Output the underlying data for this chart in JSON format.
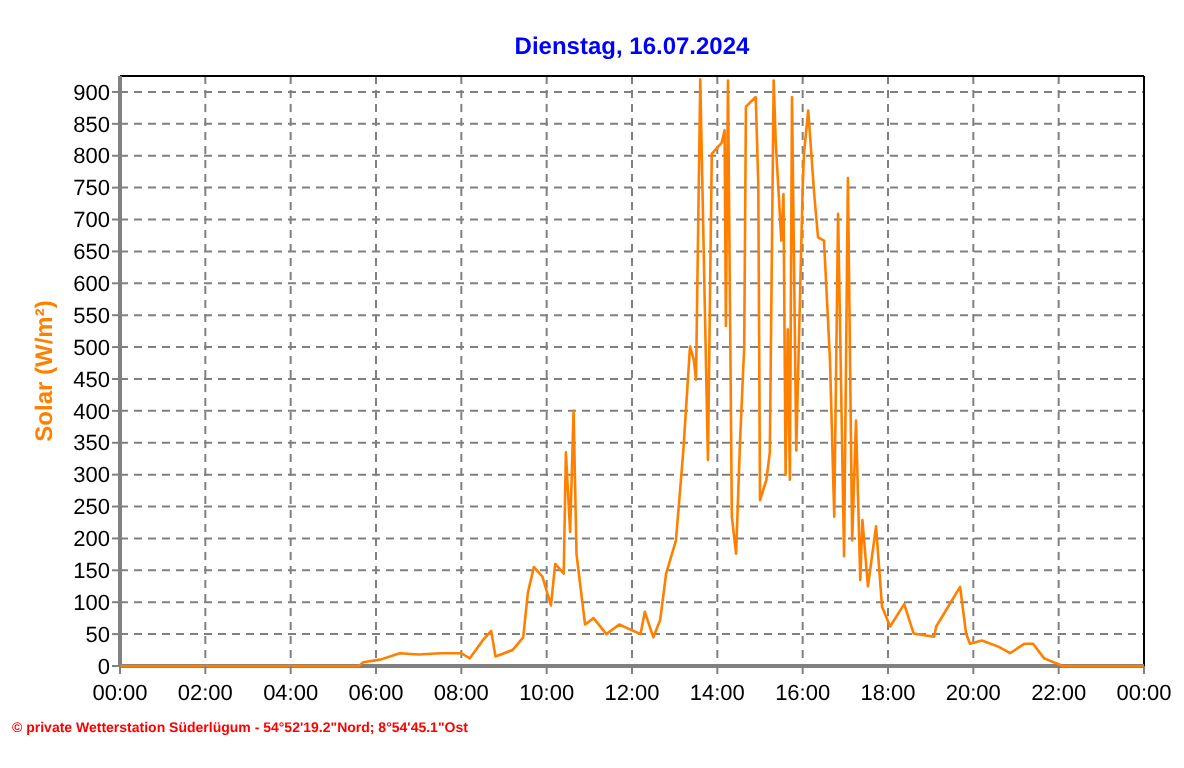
{
  "chart_data": {
    "type": "line",
    "title": "Dienstag, 16.07.2024",
    "ylabel": "Solar (W/m²)",
    "annotations": [
      "© private Wetterstation Süderlügum - 54°52'19.2\"Nord; 8°54'45.1\"Ost"
    ],
    "xlim": [
      0,
      24
    ],
    "ylim": [
      0,
      925
    ],
    "xticks": [
      {
        "value": 0,
        "label": "00:00"
      },
      {
        "value": 2,
        "label": "02:00"
      },
      {
        "value": 4,
        "label": "04:00"
      },
      {
        "value": 6,
        "label": "06:00"
      },
      {
        "value": 8,
        "label": "08:00"
      },
      {
        "value": 10,
        "label": "10:00"
      },
      {
        "value": 12,
        "label": "12:00"
      },
      {
        "value": 14,
        "label": "14:00"
      },
      {
        "value": 16,
        "label": "16:00"
      },
      {
        "value": 18,
        "label": "18:00"
      },
      {
        "value": 20,
        "label": "20:00"
      },
      {
        "value": 22,
        "label": "22:00"
      },
      {
        "value": 24,
        "label": "00:00"
      }
    ],
    "yticks": [
      0,
      50,
      100,
      150,
      200,
      250,
      300,
      350,
      400,
      450,
      500,
      550,
      600,
      650,
      700,
      750,
      800,
      850,
      900
    ],
    "grid": true,
    "series": [
      {
        "color": "#ff8000",
        "x": [
          0,
          5.6,
          5.7,
          6.1,
          6.56,
          7.0,
          7.5,
          8.0,
          8.2,
          8.5,
          8.7,
          8.8,
          9.2,
          9.45,
          9.56,
          9.7,
          9.9,
          10.1,
          10.2,
          10.4,
          10.45,
          10.55,
          10.63,
          10.7,
          10.9,
          11.1,
          11.4,
          11.7,
          12.2,
          12.3,
          12.5,
          12.66,
          12.8,
          13.03,
          13.2,
          13.36,
          13.45,
          13.5,
          13.6,
          13.7,
          13.78,
          13.87,
          14.1,
          14.17,
          14.2,
          14.25,
          14.34,
          14.44,
          14.53,
          14.63,
          14.67,
          14.9,
          14.96,
          15.0,
          15.15,
          15.23,
          15.32,
          15.37,
          15.5,
          15.55,
          15.6,
          15.65,
          15.7,
          15.75,
          15.85,
          16.0,
          16.03,
          16.13,
          16.27,
          16.36,
          16.5,
          16.64,
          16.74,
          16.83,
          16.97,
          17.06,
          17.16,
          17.25,
          17.35,
          17.4,
          17.53,
          17.72,
          17.86,
          18.05,
          18.38,
          18.6,
          19.08,
          19.13,
          19.69,
          19.83,
          19.92,
          20.2,
          20.6,
          20.86,
          21.2,
          21.4,
          21.66,
          22.1,
          24
        ],
        "values": [
          0,
          0,
          6,
          10,
          20,
          18,
          20,
          20,
          12,
          40,
          55,
          15,
          25,
          45,
          115,
          155,
          140,
          95,
          160,
          145,
          335,
          210,
          400,
          175,
          65,
          75,
          50,
          65,
          50,
          85,
          45,
          72,
          145,
          197,
          335,
          501,
          480,
          449,
          920,
          585,
          323,
          803,
          820,
          840,
          533,
          918,
          234,
          176,
          348,
          501,
          877,
          892,
          755,
          260,
          292,
          335,
          918,
          820,
          667,
          740,
          300,
          528,
          292,
          892,
          338,
          750,
          803,
          871,
          740,
          672,
          667,
          480,
          234,
          709,
          172,
          765,
          197,
          385,
          135,
          229,
          125,
          219,
          93,
          62,
          97,
          51,
          46,
          62,
          124,
          51,
          35,
          40,
          30,
          20,
          35,
          35,
          12,
          0,
          0
        ]
      }
    ]
  }
}
